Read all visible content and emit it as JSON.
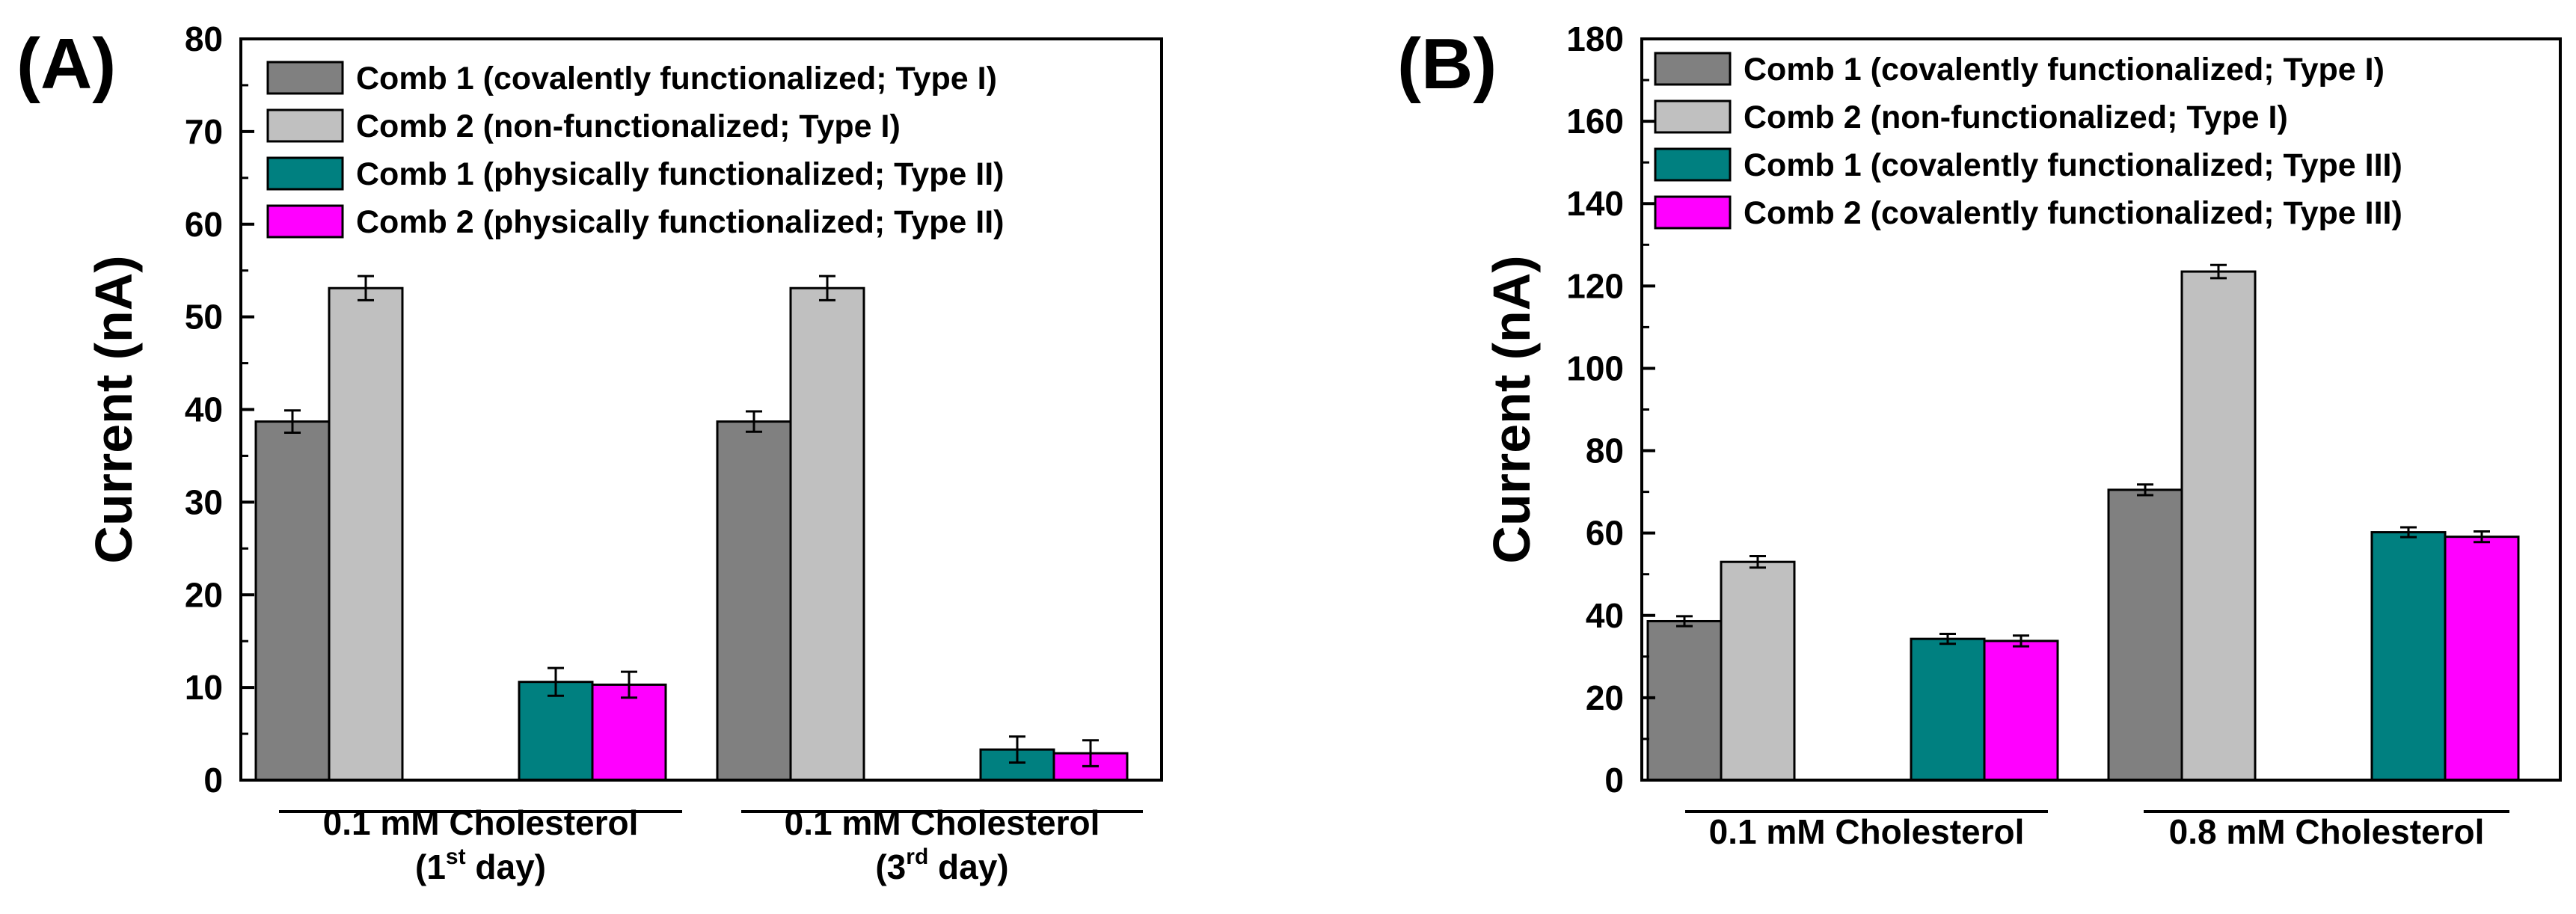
{
  "figure": {
    "panels": [
      "(A)",
      "(B)"
    ]
  },
  "chart_data": [
    {
      "type": "bar",
      "panel_label": "(A)",
      "title": "",
      "xlabel": "",
      "ylabel": "Current (nA)",
      "ylim": [
        0,
        80
      ],
      "yticks": [
        0,
        10,
        20,
        30,
        40,
        50,
        60,
        70,
        80
      ],
      "grid": false,
      "legend_position": "top",
      "groups": [
        {
          "line1": "0.1 mM Cholesterol",
          "line2_pre": "(1",
          "line2_sup": "st",
          "line2_post": " day)"
        },
        {
          "line1": "0.1 mM Cholesterol",
          "line2_pre": "(3",
          "line2_sup": "rd",
          "line2_post": " day)"
        }
      ],
      "series": [
        {
          "name": "Comb 1 (covalently functionalized; Type I)",
          "color": "#808080",
          "values": [
            38.7,
            38.7
          ],
          "errors": [
            1.2,
            1.1
          ]
        },
        {
          "name": "Comb 2 (non-functionalized; Type I)",
          "color": "#c0c0c0",
          "values": [
            53.1,
            53.1
          ],
          "errors": [
            1.3,
            1.3
          ]
        },
        {
          "name": "Comb 1 (physically functionalized; Type II)",
          "color": "#008080",
          "values": [
            10.6,
            3.3
          ],
          "errors": [
            1.5,
            1.4
          ]
        },
        {
          "name": "Comb 2 (physically functionalized; Type II)",
          "color": "#ff00ff",
          "values": [
            10.3,
            2.9
          ],
          "errors": [
            1.4,
            1.4
          ]
        }
      ]
    },
    {
      "type": "bar",
      "panel_label": "(B)",
      "title": "",
      "xlabel": "",
      "ylabel": "Current (nA)",
      "ylim": [
        0,
        180
      ],
      "yticks": [
        0,
        20,
        40,
        60,
        80,
        100,
        120,
        140,
        160,
        180
      ],
      "grid": false,
      "legend_position": "top",
      "groups": [
        {
          "line1": "0.1 mM Cholesterol"
        },
        {
          "line1": "0.8 mM Cholesterol"
        }
      ],
      "series": [
        {
          "name": "Comb 1 (covalently functionalized; Type I)",
          "color": "#808080",
          "values": [
            38.6,
            70.5
          ],
          "errors": [
            1.2,
            1.3
          ]
        },
        {
          "name": "Comb 2 (non-functionalized; Type I)",
          "color": "#c0c0c0",
          "values": [
            53.0,
            123.5
          ],
          "errors": [
            1.4,
            1.6
          ]
        },
        {
          "name": "Comb 1 (covalently functionalized; Type III)",
          "color": "#008080",
          "values": [
            34.3,
            60.2
          ],
          "errors": [
            1.2,
            1.2
          ]
        },
        {
          "name": "Comb 2 (covalently functionalized; Type III)",
          "color": "#ff00ff",
          "values": [
            33.8,
            59.1
          ],
          "errors": [
            1.3,
            1.3
          ]
        }
      ]
    }
  ]
}
